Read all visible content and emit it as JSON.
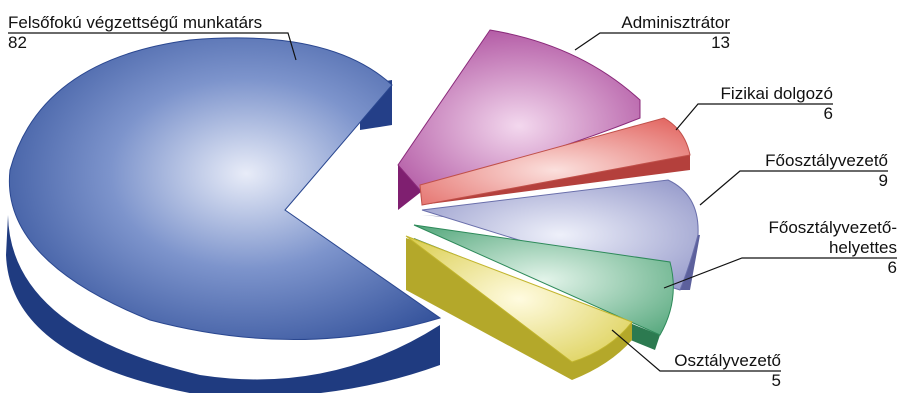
{
  "chart_data": {
    "type": "pie",
    "title": "",
    "slices": [
      {
        "label": "Felsőfokú végzettségű munkatárs",
        "value": 82,
        "color": "#2f4f9f"
      },
      {
        "label": "Adminisztrátor",
        "value": 13,
        "color": "#a0358f"
      },
      {
        "label": "Fizikai dolgozó",
        "value": 6,
        "color": "#e56a63"
      },
      {
        "label": "Főosztályvezető",
        "value": 9,
        "color": "#8a8ec4"
      },
      {
        "label": "Főosztályvezető-helyettes",
        "value": 6,
        "color": "#3f9b6b"
      },
      {
        "label": "Osztályvezető",
        "value": 5,
        "color": "#d8cc3c"
      }
    ]
  },
  "labels": {
    "s0": {
      "name": "Felsőfokú végzettségű munkatárs",
      "value": "82"
    },
    "s1": {
      "name": "Adminisztrátor",
      "value": "13"
    },
    "s2": {
      "name": "Fizikai dolgozó",
      "value": "6"
    },
    "s3": {
      "name": "Főosztályvezető",
      "value": "9"
    },
    "s4": {
      "name_line1": "Főosztályvezető-",
      "name_line2": "helyettes",
      "value": "6"
    },
    "s5": {
      "name": "Osztályvezető",
      "value": "5"
    }
  }
}
